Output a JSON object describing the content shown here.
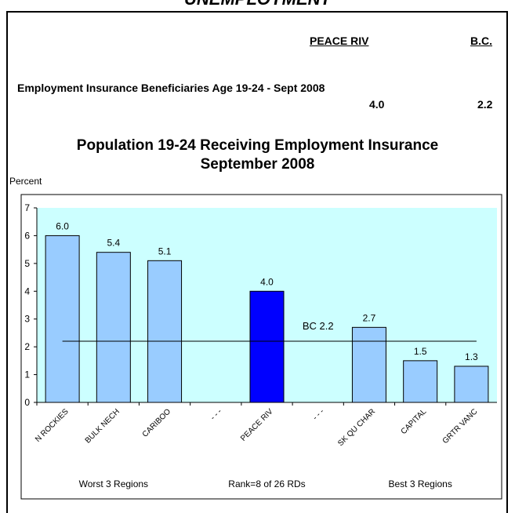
{
  "page": {
    "banner": "UNEMPLOYMENT",
    "header_region": "PEACE RIV",
    "header_bc": "B.C.",
    "metric_label": "Employment Insurance Beneficiaries Age 19-24 - Sept 2008",
    "metric_region_value": "4.0",
    "metric_bc_value": "2.2"
  },
  "chart_data": {
    "type": "bar",
    "title_line1": "Population 19-24 Receiving Employment Insurance",
    "title_line2": "September 2008",
    "ylabel": "Percent",
    "ylim": [
      0,
      7
    ],
    "yticks": [
      0,
      1,
      2,
      3,
      4,
      5,
      6,
      7
    ],
    "categories": [
      "N ROCKIES",
      "BULK NECH",
      "CARIBOO",
      "- - -",
      "PEACE RIV",
      "- - -",
      "SK QU CHAR",
      "CAPITAL",
      "GRTR VANC"
    ],
    "values": [
      6.0,
      5.4,
      5.1,
      null,
      4.0,
      null,
      2.7,
      1.5,
      1.3
    ],
    "value_labels": [
      "6.0",
      "5.4",
      "5.1",
      "",
      "4.0",
      "",
      "2.7",
      "1.5",
      "1.3"
    ],
    "highlight_index": 4,
    "reference_line": {
      "label": "BC 2.2",
      "value": 2.2
    },
    "group_labels": [
      "Worst 3 Regions",
      "Rank=8 of 26 RDs",
      "Best 3 Regions"
    ],
    "colors": {
      "plot_background": "#ccffff",
      "bar": "#99ccff",
      "highlight_bar": "#0000ff",
      "outline": "#000000"
    },
    "grid": false
  }
}
